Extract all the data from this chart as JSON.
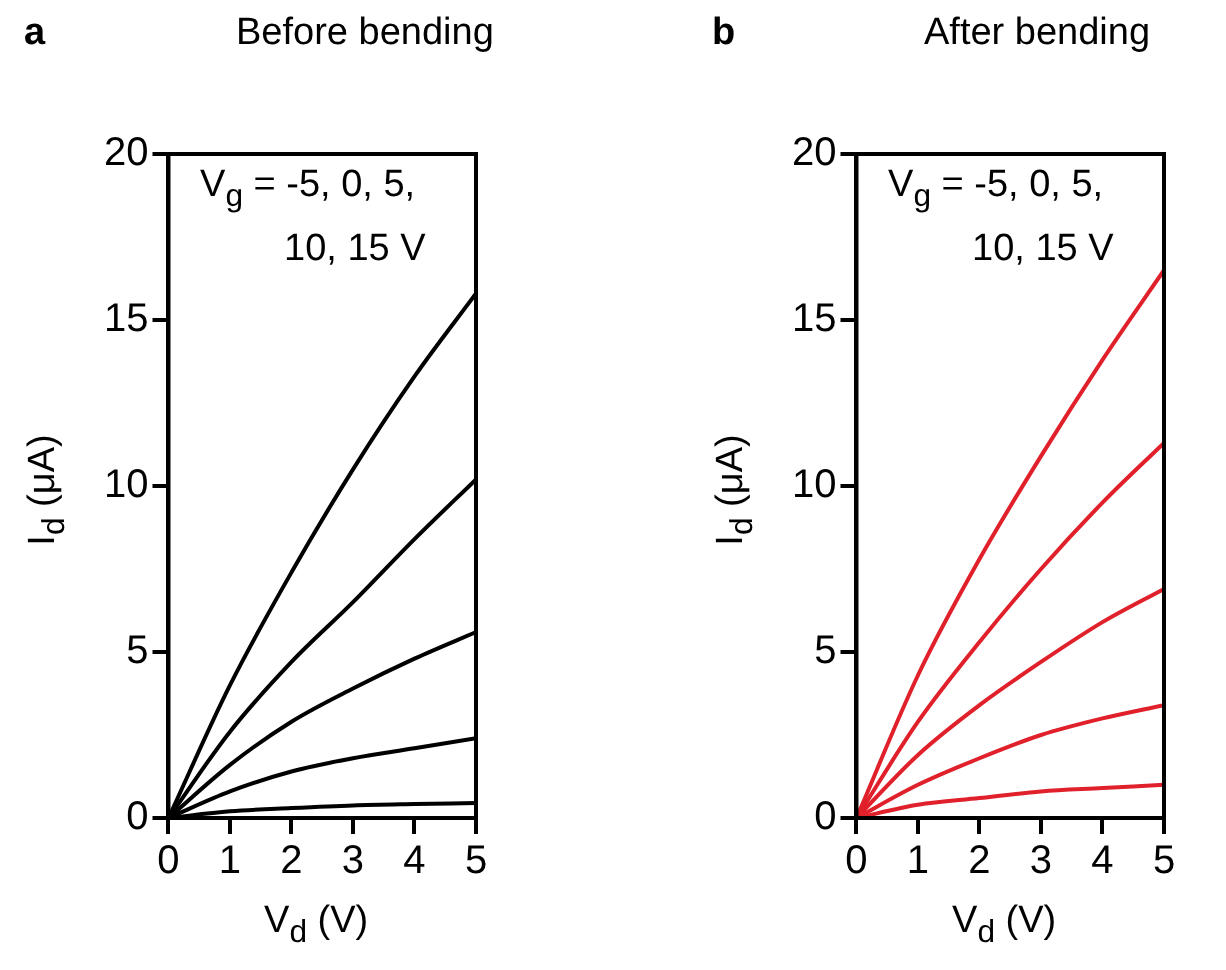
{
  "chart_data": [
    {
      "type": "line",
      "title": "Before bending",
      "xlabel": "V$_{d}$ (V)",
      "ylabel": "I$_{d}$ (μA)",
      "annotations": [
        "a",
        "V$_{g}$ = -5, 0, 5, 10, 15 V"
      ],
      "xlim": [
        0,
        5
      ],
      "xticks": [
        0,
        1,
        2,
        3,
        4,
        5
      ],
      "ylim": [
        0,
        20
      ],
      "yticks": [
        0,
        5,
        10,
        15,
        20
      ],
      "grid": false,
      "legend": false,
      "marker": "none",
      "line_style": "solid",
      "series": [
        {
          "color": "#000000",
          "x": [
            0,
            1,
            2,
            3,
            4,
            5
          ],
          "values": [
            0,
            4.0,
            7.4,
            10.5,
            13.3,
            15.8
          ]
        },
        {
          "color": "#000000",
          "x": [
            0,
            1,
            2,
            3,
            4,
            5
          ],
          "values": [
            0,
            2.6,
            4.7,
            6.5,
            8.4,
            10.2
          ]
        },
        {
          "color": "#000000",
          "x": [
            0,
            1,
            2,
            3,
            4,
            5
          ],
          "values": [
            0,
            1.6,
            2.9,
            3.9,
            4.8,
            5.6
          ]
        },
        {
          "color": "#000000",
          "x": [
            0,
            1,
            2,
            3,
            4,
            5
          ],
          "values": [
            0,
            0.8,
            1.4,
            1.8,
            2.1,
            2.4
          ]
        },
        {
          "color": "#000000",
          "x": [
            0,
            1,
            2,
            3,
            4,
            5
          ],
          "values": [
            0,
            0.2,
            0.3,
            0.38,
            0.42,
            0.45
          ]
        }
      ]
    },
    {
      "type": "line",
      "title": "After bending",
      "xlabel": "V$_{d}$ (V)",
      "ylabel": "I$_{d}$ (μA)",
      "annotations": [
        "b",
        "V$_{g}$ = -5, 0, 5, 10, 15 V"
      ],
      "xlim": [
        0,
        5
      ],
      "xticks": [
        0,
        1,
        2,
        3,
        4,
        5
      ],
      "ylim": [
        0,
        20
      ],
      "yticks": [
        0,
        5,
        10,
        15,
        20
      ],
      "grid": false,
      "legend": false,
      "marker": "none",
      "line_style": "solid",
      "series": [
        {
          "color": "#e0202a",
          "x": [
            0,
            1,
            2,
            3,
            4,
            5
          ],
          "values": [
            0,
            4.3,
            7.8,
            10.9,
            13.8,
            16.5
          ]
        },
        {
          "color": "#e0202a",
          "x": [
            0,
            1,
            2,
            3,
            4,
            5
          ],
          "values": [
            0,
            2.9,
            5.3,
            7.5,
            9.5,
            11.3
          ]
        },
        {
          "color": "#e0202a",
          "x": [
            0,
            1,
            2,
            3,
            4,
            5
          ],
          "values": [
            0,
            1.9,
            3.4,
            4.7,
            5.9,
            6.9
          ]
        },
        {
          "color": "#e0202a",
          "x": [
            0,
            1,
            2,
            3,
            4,
            5
          ],
          "values": [
            0,
            1.0,
            1.8,
            2.5,
            3.0,
            3.4
          ]
        },
        {
          "color": "#e0202a",
          "x": [
            0,
            1,
            2,
            3,
            4,
            5
          ],
          "values": [
            0,
            0.4,
            0.6,
            0.8,
            0.9,
            1.0
          ]
        }
      ]
    }
  ]
}
